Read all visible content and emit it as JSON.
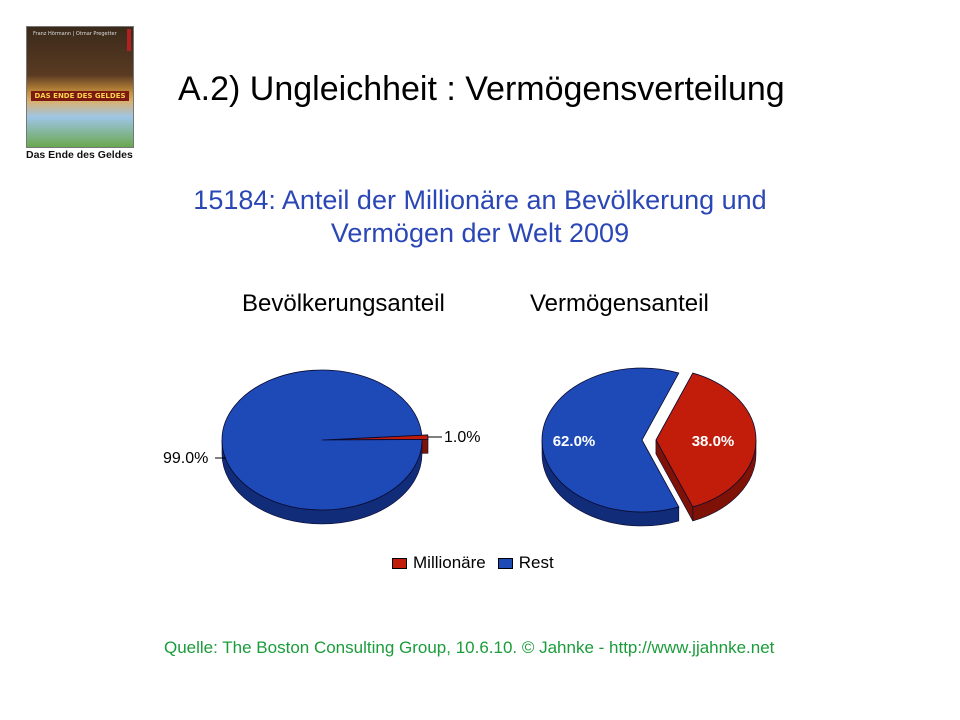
{
  "slide": {
    "title": "A.2)  Ungleichheit  : Vermögensverteilung"
  },
  "book": {
    "authors": "Franz Hörmann | Otmar Pregetter",
    "band_text": "DAS ENDE DES GELDES",
    "caption": "Das Ende des Geldes"
  },
  "source": "Quelle: The Boston Consulting Group, 10.6.10. © Jahnke - http://www.jjahnke.net",
  "colors": {
    "millionaire": "#c21d0a",
    "millionaire_dark": "#7e1207",
    "rest": "#1e4ab8",
    "rest_dark": "#112c78",
    "title_blue": "#2a47b5",
    "source_green": "#1a9c3a"
  },
  "chart_data": {
    "type": "pie",
    "title": "15184: Anteil der Millionäre an Bevölkerung und Vermögen der Welt 2009",
    "legend": {
      "position": "bottom",
      "entries": [
        "Millionäre",
        "Rest"
      ]
    },
    "pies": [
      {
        "title": "Bevölkerungsanteil",
        "slices": [
          {
            "name": "Millionäre",
            "value": 1.0,
            "label": "1.0%"
          },
          {
            "name": "Rest",
            "value": 99.0,
            "label": "99.0%"
          }
        ]
      },
      {
        "title": "Vermögensanteil",
        "slices": [
          {
            "name": "Millionäre",
            "value": 38.0,
            "label": "38.0%"
          },
          {
            "name": "Rest",
            "value": 62.0,
            "label": "62.0%"
          }
        ]
      }
    ]
  }
}
